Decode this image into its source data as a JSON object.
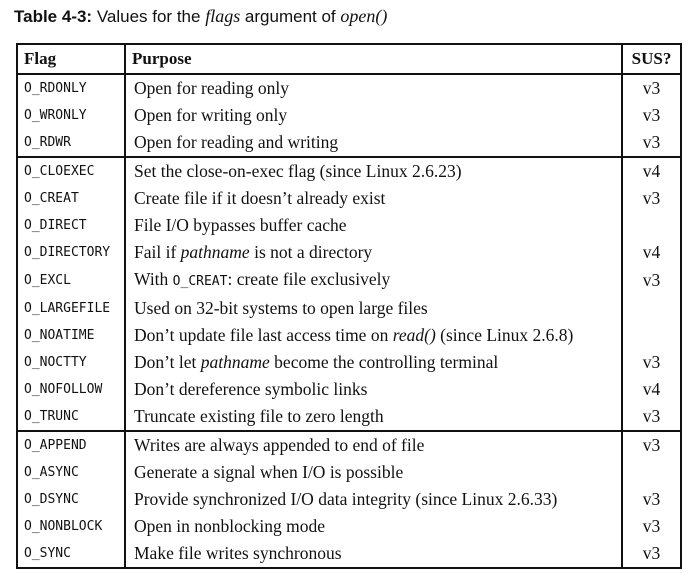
{
  "caption": {
    "label": "Table 4-3:",
    "text_1": " Values for the ",
    "italic_1": "flags",
    "text_2": " argument of ",
    "italic_2": "open()"
  },
  "table": {
    "headers": [
      "Flag",
      "Purpose",
      "SUS?"
    ],
    "rows": [
      {
        "flag": "O_RDONLY",
        "segments": [
          {
            "t": "Open for reading only"
          }
        ],
        "sus": "v3"
      },
      {
        "flag": "O_WRONLY",
        "segments": [
          {
            "t": "Open for writing only"
          }
        ],
        "sus": "v3"
      },
      {
        "flag": "O_RDWR",
        "segments": [
          {
            "t": "Open for reading and writing"
          }
        ],
        "sus": "v3",
        "group_end": true
      },
      {
        "flag": "O_CLOEXEC",
        "segments": [
          {
            "t": "Set the close-on-exec flag (since Linux 2.6.23)"
          }
        ],
        "sus": "v4"
      },
      {
        "flag": "O_CREAT",
        "segments": [
          {
            "t": "Create file if it doesn’t already exist"
          }
        ],
        "sus": "v3"
      },
      {
        "flag": "O_DIRECT",
        "segments": [
          {
            "t": "File I/O bypasses buffer cache"
          }
        ],
        "sus": ""
      },
      {
        "flag": "O_DIRECTORY",
        "segments": [
          {
            "t": "Fail if "
          },
          {
            "t": "pathname",
            "s": "it"
          },
          {
            "t": " is not a directory"
          }
        ],
        "sus": "v4"
      },
      {
        "flag": "O_EXCL",
        "segments": [
          {
            "t": "With "
          },
          {
            "t": "O_CREAT",
            "s": "mono"
          },
          {
            "t": ": create file exclusively"
          }
        ],
        "sus": "v3"
      },
      {
        "flag": "O_LARGEFILE",
        "segments": [
          {
            "t": "Used on 32-bit systems to open large files"
          }
        ],
        "sus": ""
      },
      {
        "flag": "O_NOATIME",
        "segments": [
          {
            "t": "Don’t update file last access time on "
          },
          {
            "t": "read()",
            "s": "it"
          },
          {
            "t": " (since Linux 2.6.8)"
          }
        ],
        "sus": ""
      },
      {
        "flag": "O_NOCTTY",
        "segments": [
          {
            "t": "Don’t let "
          },
          {
            "t": "pathname",
            "s": "it"
          },
          {
            "t": " become the controlling terminal"
          }
        ],
        "sus": "v3"
      },
      {
        "flag": "O_NOFOLLOW",
        "segments": [
          {
            "t": "Don’t dereference symbolic links"
          }
        ],
        "sus": "v4"
      },
      {
        "flag": "O_TRUNC",
        "segments": [
          {
            "t": "Truncate existing file to zero length"
          }
        ],
        "sus": "v3",
        "group_end": true
      },
      {
        "flag": "O_APPEND",
        "segments": [
          {
            "t": "Writes are always appended to end of file"
          }
        ],
        "sus": "v3"
      },
      {
        "flag": "O_ASYNC",
        "segments": [
          {
            "t": "Generate a signal when I/O is possible"
          }
        ],
        "sus": ""
      },
      {
        "flag": "O_DSYNC",
        "segments": [
          {
            "t": "Provide synchronized I/O data integrity (since Linux 2.6.33)"
          }
        ],
        "sus": "v3"
      },
      {
        "flag": "O_NONBLOCK",
        "segments": [
          {
            "t": "Open in nonblocking mode"
          }
        ],
        "sus": "v3"
      },
      {
        "flag": "O_SYNC",
        "segments": [
          {
            "t": "Make file writes synchronous"
          }
        ],
        "sus": "v3"
      }
    ]
  }
}
